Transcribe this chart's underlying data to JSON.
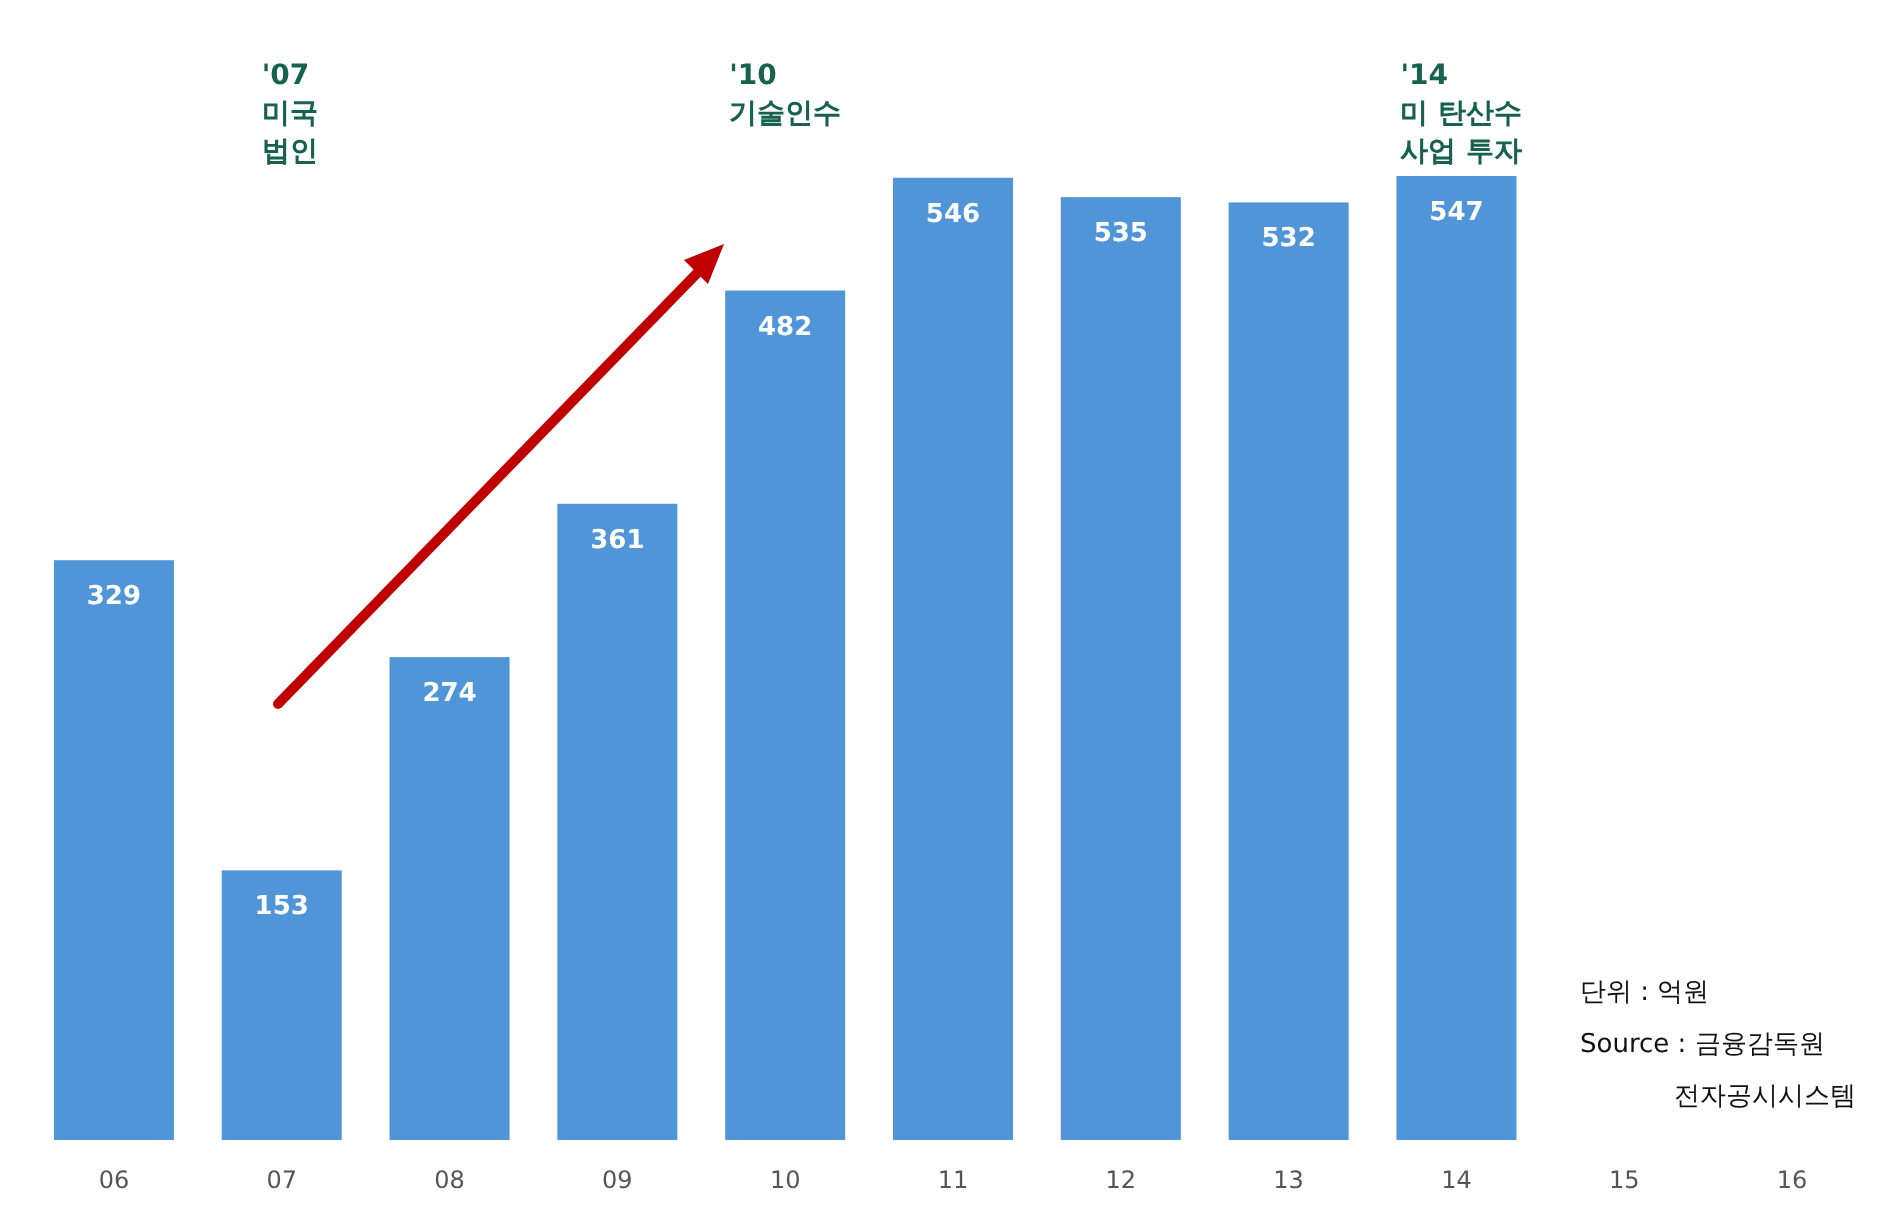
{
  "chart_data": {
    "type": "bar",
    "categories": [
      "06",
      "07",
      "08",
      "09",
      "10",
      "11",
      "12",
      "13",
      "14",
      "15",
      "16"
    ],
    "values": [
      329,
      153,
      274,
      361,
      482,
      546,
      535,
      532,
      547,
      null,
      null
    ],
    "color": "#4f95d8",
    "data_labels": true,
    "annotations": [
      "'07\n미국\n법인",
      "'10\n기술인수",
      "'14\n미 탄산수\n사업 투자",
      "단위 : 억원",
      "Source : 금융감독원\n전자공시시스템"
    ]
  }
}
